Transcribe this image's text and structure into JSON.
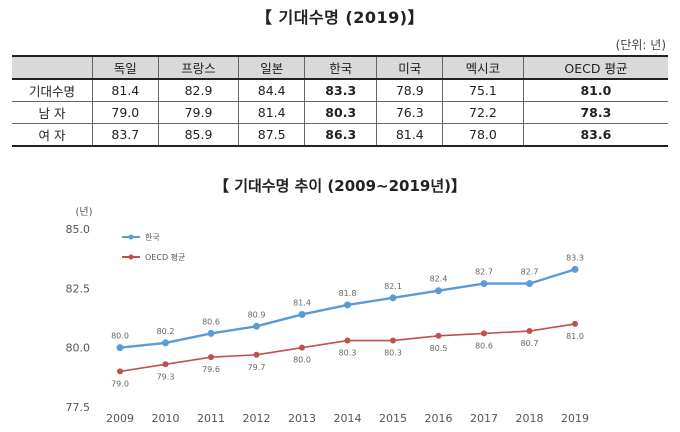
{
  "table": {
    "title": "【 기대수명 (2019)】",
    "unit": "(단위: 년)",
    "columns": [
      "독일",
      "프랑스",
      "일본",
      "한국",
      "미국",
      "멕시코",
      "OECD 평균"
    ],
    "rows": [
      {
        "label": "기대수명",
        "values": [
          "81.4",
          "82.9",
          "84.4",
          "83.3",
          "78.9",
          "75.1",
          "81.0"
        ]
      },
      {
        "label": "남 자",
        "values": [
          "79.0",
          "79.9",
          "81.4",
          "80.3",
          "76.3",
          "72.2",
          "78.3"
        ]
      },
      {
        "label": "여 자",
        "values": [
          "83.7",
          "85.9",
          "87.5",
          "86.3",
          "81.4",
          "78.0",
          "83.6"
        ]
      }
    ]
  },
  "chart_data": {
    "type": "line",
    "title": "【 기대수명 추이 (2009∼2019년)】",
    "ylabel": "(년)",
    "xlabel": "",
    "x": [
      "2009",
      "2010",
      "2011",
      "2012",
      "2013",
      "2014",
      "2015",
      "2016",
      "2017",
      "2018",
      "2019"
    ],
    "ylim": [
      77.5,
      85.0
    ],
    "yticks": [
      "77.5",
      "80.0",
      "82.5",
      "85.0"
    ],
    "legend_position": "top-left",
    "grid": false,
    "series": [
      {
        "name": "한국",
        "color": "#5b9bd5",
        "values": [
          80.0,
          80.2,
          80.6,
          80.9,
          81.4,
          81.8,
          82.1,
          82.4,
          82.7,
          82.7,
          83.3
        ],
        "labels": [
          "80.0",
          "80.2",
          "80.6",
          "80.9",
          "81.4",
          "81.8",
          "82.1",
          "82.4",
          "82.7",
          "82.7",
          "83.3"
        ]
      },
      {
        "name": "OECD 평균",
        "color": "#c0504d",
        "values": [
          79.0,
          79.3,
          79.6,
          79.7,
          80.0,
          80.3,
          80.3,
          80.5,
          80.6,
          80.7,
          81.0
        ],
        "labels": [
          "79.0",
          "79.3",
          "79.6",
          "79.7",
          "80.0",
          "80.3",
          "80.3",
          "80.5",
          "80.6",
          "80.7",
          "81.0"
        ]
      }
    ]
  }
}
